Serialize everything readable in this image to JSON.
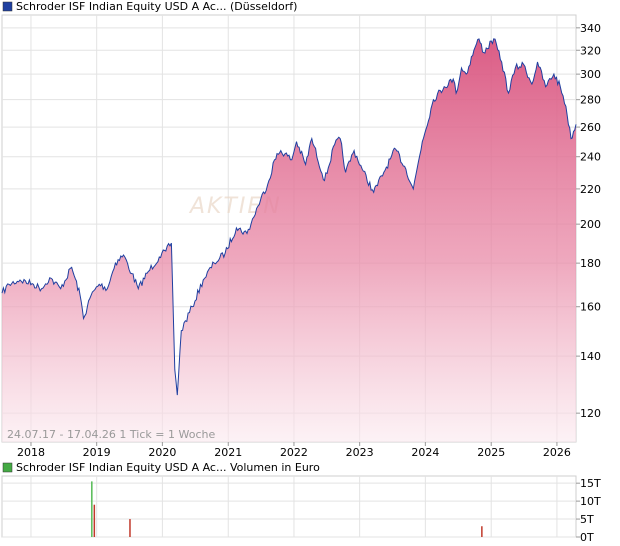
{
  "price_chart": {
    "title": "Schroder ISF Indian Equity USD A Ac... (Düsseldorf)",
    "legend_color": "#1f3fa0",
    "watermark": "AKTIEN",
    "info_text": "24.07.17 - 17.04.26   1 Tick = 1 Woche",
    "line_color": "#1f3fa0",
    "fill_color": "#d9547f",
    "grid": true,
    "y_scale": "log"
  },
  "volume_chart": {
    "title": "Schroder ISF Indian Equity USD A Ac... Volumen in Euro",
    "legend_color": "#44aa44",
    "grid": true
  },
  "chart_data": [
    {
      "type": "area",
      "title": "Schroder ISF Indian Equity USD A Ac... (Düsseldorf)",
      "xlabel": "",
      "ylabel": "",
      "y_ticks": [
        120,
        140,
        160,
        180,
        200,
        220,
        240,
        260,
        280,
        300,
        320,
        340
      ],
      "ylim": [
        111,
        352
      ],
      "x_ticks": [
        "2018",
        "2019",
        "2020",
        "2021",
        "2022",
        "2023",
        "2024",
        "2025",
        "2026"
      ],
      "xlim": [
        "2017-07-24",
        "2026-04-17"
      ],
      "legend": "top-left",
      "series": [
        {
          "x": [
            "2017-07-24",
            "2017-09-01",
            "2017-11-01",
            "2018-01-15",
            "2018-03-01",
            "2018-04-15",
            "2018-06-15",
            "2018-08-15",
            "2018-10-01",
            "2018-10-20",
            "2018-12-01",
            "2019-01-15",
            "2019-03-01",
            "2019-04-15",
            "2019-05-30",
            "2019-07-15",
            "2019-08-20",
            "2019-10-15",
            "2019-12-15",
            "2020-01-20",
            "2020-02-20",
            "2020-03-10",
            "2020-03-24",
            "2020-04-15",
            "2020-06-15",
            "2020-08-15",
            "2020-10-15",
            "2020-12-15",
            "2021-02-15",
            "2021-04-15",
            "2021-06-15",
            "2021-08-15",
            "2021-09-15",
            "2021-10-20",
            "2021-12-20",
            "2022-01-15",
            "2022-03-07",
            "2022-04-10",
            "2022-06-20",
            "2022-08-15",
            "2022-09-15",
            "2022-10-15",
            "2022-12-01",
            "2023-01-15",
            "2023-03-20",
            "2023-05-15",
            "2023-07-20",
            "2023-09-15",
            "2023-10-26",
            "2023-12-15",
            "2024-02-15",
            "2024-04-15",
            "2024-06-04",
            "2024-06-20",
            "2024-07-20",
            "2024-08-15",
            "2024-09-27",
            "2024-10-25",
            "2024-11-20",
            "2025-01-15",
            "2025-02-28",
            "2025-04-07",
            "2025-05-15",
            "2025-06-30",
            "2025-08-15",
            "2025-09-15",
            "2025-10-30",
            "2025-12-15",
            "2026-01-20",
            "2026-02-20",
            "2026-03-20",
            "2026-04-17"
          ],
          "y": [
            166,
            170,
            172,
            170,
            168,
            173,
            168,
            178,
            165,
            155,
            165,
            170,
            168,
            180,
            184,
            175,
            168,
            176,
            183,
            186,
            190,
            135,
            126,
            150,
            160,
            172,
            180,
            185,
            198,
            195,
            210,
            225,
            238,
            244,
            238,
            250,
            235,
            252,
            225,
            248,
            252,
            230,
            244,
            232,
            218,
            230,
            245,
            232,
            220,
            250,
            280,
            290,
            296,
            285,
            305,
            300,
            320,
            330,
            318,
            330,
            310,
            285,
            305,
            308,
            292,
            310,
            290,
            300,
            290,
            275,
            252,
            262
          ]
        }
      ]
    },
    {
      "type": "bar",
      "title": "Schroder ISF Indian Equity USD A Ac... Volumen in Euro",
      "y_ticks_labels": [
        "0T",
        "5T",
        "10T",
        "15T"
      ],
      "y_ticks": [
        0,
        5,
        10,
        15
      ],
      "ylim": [
        0,
        17
      ],
      "xlim": [
        "2017-07-24",
        "2026-04-17"
      ],
      "unit": "T Euro",
      "series": [
        {
          "x": [
            "2018-12-05",
            "2018-12-19",
            "2019-07-05",
            "2024-11-10"
          ],
          "y": [
            15.5,
            9,
            5,
            3
          ]
        }
      ]
    }
  ]
}
